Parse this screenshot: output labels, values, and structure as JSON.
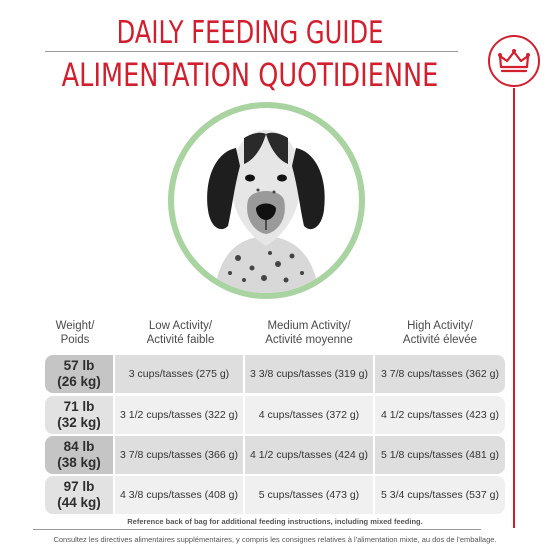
{
  "title": {
    "en": "DAILY FEEDING GUIDE",
    "fr": "ALIMENTATION QUOTIDIENNE"
  },
  "brand": {
    "logo": "crown-icon",
    "color": "#d21f2f"
  },
  "photo": {
    "subject": "dog-portrait-icon",
    "ring_color": "#a9d3a0"
  },
  "table": {
    "headers": {
      "weight": [
        "Weight/",
        "Poids"
      ],
      "low": [
        "Low Activity/",
        "Activité faible"
      ],
      "medium": [
        "Medium Activity/",
        "Activité moyenne"
      ],
      "high": [
        "High Activity/",
        "Activité élevée"
      ]
    },
    "rows": [
      {
        "lb": "57 lb",
        "kg": "(26 kg)",
        "low": "3 cups/tasses (275 g)",
        "medium": "3 3/8 cups/tasses (319 g)",
        "high": "3 7/8 cups/tasses (362 g)"
      },
      {
        "lb": "71 lb",
        "kg": "(32 kg)",
        "low": "3 1/2 cups/tasses (322 g)",
        "medium": "4 cups/tasses (372 g)",
        "high": "4 1/2 cups/tasses (423 g)"
      },
      {
        "lb": "84 lb",
        "kg": "(38 kg)",
        "low": "3 7/8 cups/tasses (366 g)",
        "medium": "4 1/2 cups/tasses (424 g)",
        "high": "5 1/8 cups/tasses (481 g)"
      },
      {
        "lb": "97 lb",
        "kg": "(44 kg)",
        "low": "4 3/8 cups/tasses (408 g)",
        "medium": "5 cups/tasses (473 g)",
        "high": "5 3/4 cups/tasses (537 g)"
      }
    ]
  },
  "footnote": "Reference back of bag for additional feeding instructions, including mixed feeding.",
  "disclaimer": "Consultez les directives alimentaires supplémentaires, y compris les consignes relatives à l'alimentation mixte, au dos de l'emballage."
}
